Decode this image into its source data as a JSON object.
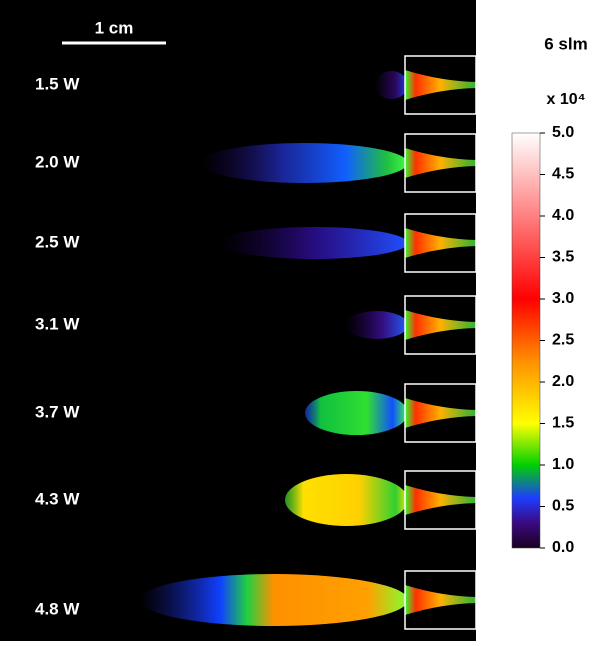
{
  "scale_bar": {
    "label": "1 cm"
  },
  "rows": [
    "1.5 W",
    "2.0 W",
    "2.5 W",
    "3.1 W",
    "3.7 W",
    "4.3 W",
    "4.8 W"
  ],
  "colorbar": {
    "title": "6 slm",
    "multiplier": "x 10⁴",
    "lim": [
      0,
      5
    ],
    "ticks": [
      {
        "value": 5,
        "label": "5.0"
      },
      {
        "value": 4.5,
        "label": "4.5"
      },
      {
        "value": 4,
        "label": "4.0"
      },
      {
        "value": 3.5,
        "label": "3.5"
      },
      {
        "value": 3,
        "label": "3.0"
      },
      {
        "value": 2.5,
        "label": "2.5"
      },
      {
        "value": 2,
        "label": "2.0"
      },
      {
        "value": 1.5,
        "label": "1.5"
      },
      {
        "value": 1,
        "label": "1.0"
      },
      {
        "value": 0.5,
        "label": "0.5"
      },
      {
        "value": 0,
        "label": "0.0"
      }
    ]
  }
}
